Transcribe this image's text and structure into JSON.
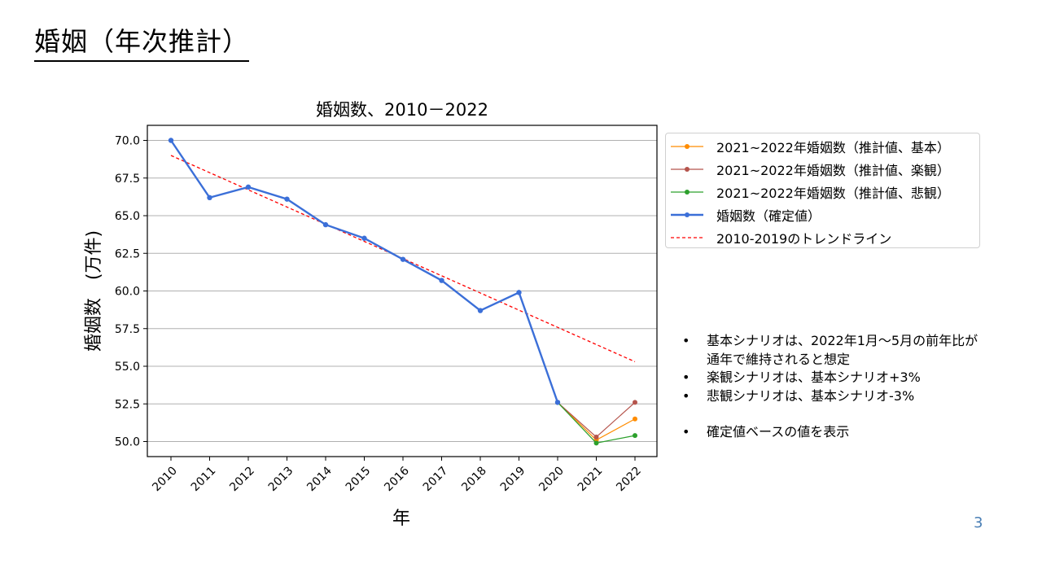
{
  "slide": {
    "title": "婚姻（年次推計）",
    "page_number": "3"
  },
  "chart_data": {
    "type": "line",
    "title": "婚姻数、2010－2022",
    "xlabel": "年",
    "ylabel": "婚姻数　(万件)",
    "categories": [
      "2010",
      "2011",
      "2012",
      "2013",
      "2014",
      "2015",
      "2016",
      "2017",
      "2018",
      "2019",
      "2020",
      "2021",
      "2022"
    ],
    "ylim": [
      49.0,
      71.0
    ],
    "yticks": [
      "50.0",
      "52.5",
      "55.0",
      "57.5",
      "60.0",
      "62.5",
      "65.0",
      "67.5",
      "70.0"
    ],
    "grid": "horizontal",
    "legend_position": "right",
    "series": [
      {
        "name": "2021~2022年婚姻数（推計値、基本）",
        "color": "#ff8c00",
        "x": [
          "2020",
          "2021",
          "2022"
        ],
        "values": [
          52.6,
          50.1,
          51.5
        ]
      },
      {
        "name": "2021~2022年婚姻数（推計値、楽観）",
        "color": "#b5544c",
        "x": [
          "2020",
          "2021",
          "2022"
        ],
        "values": [
          52.6,
          50.3,
          52.6
        ]
      },
      {
        "name": "2021~2022年婚姻数（推計値、悲観）",
        "color": "#2ca02c",
        "x": [
          "2020",
          "2021",
          "2022"
        ],
        "values": [
          52.6,
          49.9,
          50.4
        ]
      },
      {
        "name": "婚姻数（確定値）",
        "color": "#3b6fd8",
        "x": [
          "2010",
          "2011",
          "2012",
          "2013",
          "2014",
          "2015",
          "2016",
          "2017",
          "2018",
          "2019",
          "2020"
        ],
        "values": [
          70.0,
          66.2,
          66.9,
          66.1,
          64.4,
          63.5,
          62.1,
          60.7,
          58.7,
          59.9,
          52.6
        ]
      },
      {
        "name": "2010-2019のトレンドライン",
        "color": "#ff0000",
        "dashed": true,
        "x": [
          "2010",
          "2022"
        ],
        "values": [
          69.0,
          55.3
        ]
      }
    ]
  },
  "notes": {
    "bullet_char": "•",
    "items": [
      {
        "text": "基本シナリオは、2022年1月～5月の前年比が"
      },
      {
        "text": "通年で維持されると想定",
        "continuation": true
      },
      {
        "text": "楽観シナリオは、基本シナリオ+3%"
      },
      {
        "text": "悲観シナリオは、基本シナリオ-3%"
      },
      {
        "gap": true
      },
      {
        "text": "確定値ベースの値を表示"
      }
    ]
  }
}
